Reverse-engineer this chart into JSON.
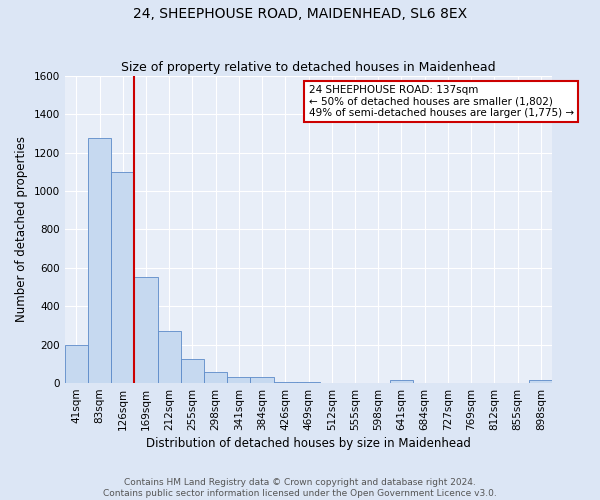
{
  "title": "24, SHEEPHOUSE ROAD, MAIDENHEAD, SL6 8EX",
  "subtitle": "Size of property relative to detached houses in Maidenhead",
  "xlabel": "Distribution of detached houses by size in Maidenhead",
  "ylabel": "Number of detached properties",
  "bar_labels": [
    "41sqm",
    "83sqm",
    "126sqm",
    "169sqm",
    "212sqm",
    "255sqm",
    "298sqm",
    "341sqm",
    "384sqm",
    "426sqm",
    "469sqm",
    "512sqm",
    "555sqm",
    "598sqm",
    "641sqm",
    "684sqm",
    "727sqm",
    "769sqm",
    "812sqm",
    "855sqm",
    "898sqm"
  ],
  "bar_values": [
    200,
    1275,
    1100,
    550,
    270,
    125,
    60,
    30,
    30,
    5,
    5,
    0,
    0,
    0,
    15,
    0,
    0,
    0,
    0,
    0,
    15
  ],
  "bar_color": "#c6d9f0",
  "bar_edge_color": "#5b8ac9",
  "ylim": [
    0,
    1600
  ],
  "yticks": [
    0,
    200,
    400,
    600,
    800,
    1000,
    1200,
    1400,
    1600
  ],
  "vline_index": 2,
  "vline_color": "#cc0000",
  "annotation_title": "24 SHEEPHOUSE ROAD: 137sqm",
  "annotation_line1": "← 50% of detached houses are smaller (1,802)",
  "annotation_line2": "49% of semi-detached houses are larger (1,775) →",
  "annotation_box_facecolor": "#ffffff",
  "annotation_box_edgecolor": "#cc0000",
  "footer_line1": "Contains HM Land Registry data © Crown copyright and database right 2024.",
  "footer_line2": "Contains public sector information licensed under the Open Government Licence v3.0.",
  "bg_color": "#dce6f5",
  "plot_bg_color": "#e8eef8",
  "title_fontsize": 10,
  "subtitle_fontsize": 9,
  "axis_label_fontsize": 8.5,
  "tick_fontsize": 7.5,
  "annotation_fontsize": 7.5,
  "footer_fontsize": 6.5
}
